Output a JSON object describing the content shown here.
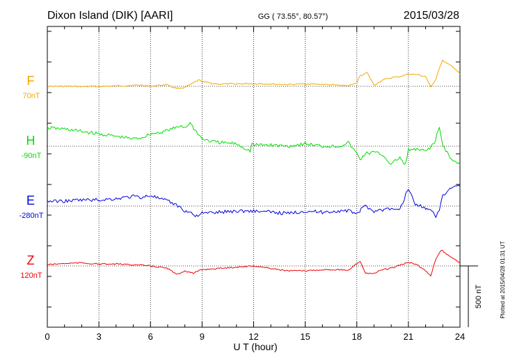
{
  "header": {
    "station": "Dixon Island (DIK)  [AARI]",
    "coords": "GG ( 73.55°,  80.57°)",
    "date": "2015/03/28"
  },
  "side_note": "Plotted at 2015/04/28 01:31  UT",
  "scale_bar_label": "500 nT",
  "chart_data": {
    "type": "line",
    "xlabel": "U T (hour)",
    "xlim": [
      0,
      24
    ],
    "xticks": [
      "0",
      "3",
      "6",
      "9",
      "12",
      "15",
      "18",
      "21",
      "24"
    ],
    "grid": true,
    "scale_bar_nT": 500,
    "series": [
      {
        "name": "F",
        "baseline_label": "70nT",
        "color": "#f0a800",
        "x": [
          0,
          1,
          2,
          3,
          4,
          4.5,
          5,
          5.5,
          6,
          6.5,
          7,
          7.3,
          7.6,
          8,
          8.4,
          8.8,
          9,
          9.5,
          10,
          11,
          12,
          13,
          14,
          15,
          16,
          17,
          17.5,
          17.8,
          18,
          18.2,
          18.6,
          19,
          19.5,
          20,
          20.5,
          21,
          21.5,
          22,
          22.3,
          22.6,
          22.8,
          23,
          23.3,
          23.6,
          24
        ],
        "y": [
          70,
          70,
          68,
          70,
          72,
          75,
          78,
          80,
          72,
          78,
          85,
          60,
          55,
          60,
          90,
          120,
          110,
          95,
          88,
          90,
          92,
          88,
          84,
          90,
          86,
          78,
          75,
          85,
          100,
          160,
          180,
          80,
          120,
          140,
          150,
          170,
          165,
          150,
          60,
          130,
          220,
          280,
          250,
          230,
          170
        ]
      },
      {
        "name": "H",
        "baseline_label": "-90nT",
        "color": "#00dd00",
        "x": [
          0,
          1,
          2,
          3,
          4,
          5,
          5.5,
          6,
          6.5,
          7,
          7.5,
          7.8,
          8,
          8.3,
          8.6,
          9,
          9.5,
          10,
          11,
          11.8,
          11.9,
          12,
          13,
          14,
          15,
          16,
          17,
          17.5,
          18,
          18.2,
          18.5,
          19,
          19.5,
          20,
          20.5,
          20.8,
          21,
          21.5,
          22,
          22.5,
          22.8,
          23,
          23.5,
          24
        ],
        "y": [
          60,
          50,
          30,
          10,
          -10,
          -30,
          -20,
          10,
          20,
          40,
          60,
          80,
          60,
          100,
          40,
          -30,
          -50,
          -60,
          -70,
          -130,
          -70,
          -80,
          -80,
          -90,
          -70,
          -90,
          -90,
          -60,
          -150,
          -200,
          -150,
          -140,
          -160,
          -240,
          -180,
          -250,
          -120,
          -120,
          -130,
          -70,
          60,
          -80,
          -200,
          -240
        ]
      },
      {
        "name": "E",
        "baseline_label": "-280nT",
        "color": "#0000dd",
        "x": [
          0,
          1,
          2,
          3,
          4,
          5,
          5.5,
          6,
          6.5,
          7,
          7.5,
          8,
          8.3,
          8.6,
          9,
          10,
          11,
          12,
          13,
          14,
          15,
          16,
          17,
          17.5,
          18,
          18.5,
          19,
          19.5,
          20,
          20.3,
          20.6,
          21,
          21.4,
          21.7,
          22,
          22.3,
          22.6,
          22.8,
          23,
          23.5,
          24
        ],
        "y": [
          -240,
          -240,
          -230,
          -230,
          -220,
          -200,
          -210,
          -190,
          -220,
          -240,
          -270,
          -320,
          -330,
          -360,
          -340,
          -330,
          -320,
          -320,
          -330,
          -340,
          -320,
          -330,
          -320,
          -320,
          -340,
          -280,
          -320,
          -310,
          -300,
          -320,
          -280,
          -130,
          -270,
          -270,
          -310,
          -300,
          -380,
          -310,
          -200,
          -130,
          -120
        ]
      },
      {
        "name": "Z",
        "baseline_label": "120nT",
        "color": "#ee0000",
        "x": [
          0,
          1,
          2,
          3,
          4,
          5,
          6,
          6.5,
          7,
          7.5,
          8,
          8.5,
          9,
          10,
          11,
          12,
          13,
          14,
          15,
          16,
          17,
          17.5,
          18,
          18.2,
          18.5,
          19,
          19.5,
          20,
          21,
          21.5,
          22,
          22.3,
          22.6,
          22.9,
          23.3,
          23.8,
          24
        ],
        "y": [
          130,
          140,
          145,
          135,
          135,
          130,
          120,
          110,
          100,
          50,
          80,
          60,
          90,
          100,
          110,
          120,
          100,
          80,
          80,
          90,
          90,
          80,
          140,
          160,
          60,
          60,
          90,
          100,
          150,
          130,
          80,
          40,
          180,
          250,
          210,
          160,
          150
        ]
      }
    ]
  }
}
